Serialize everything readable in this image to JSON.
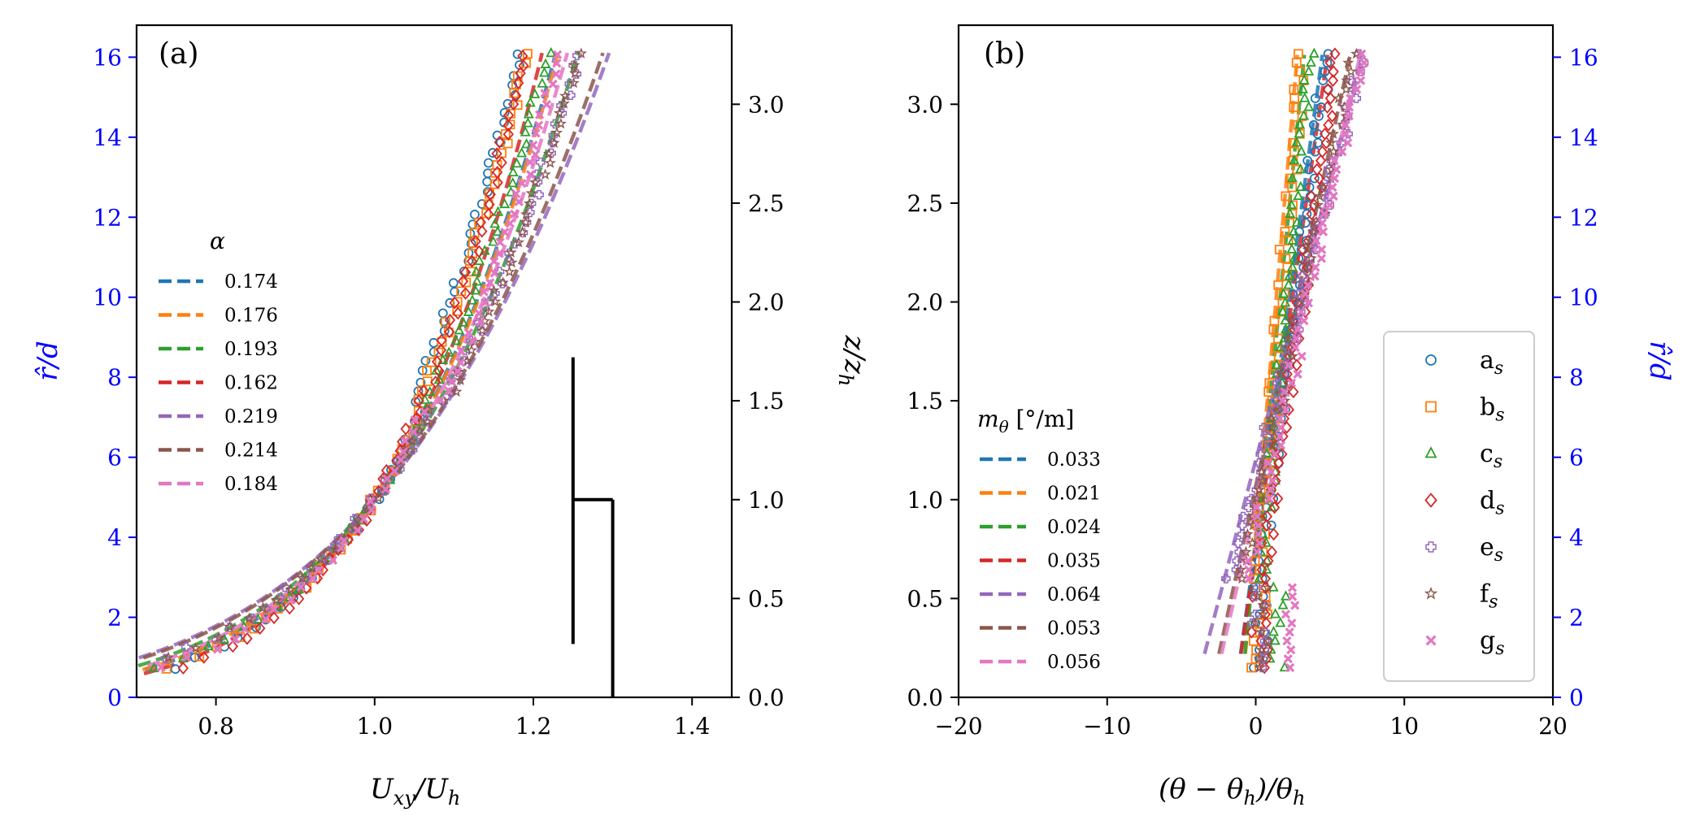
{
  "colors": {
    "a": "#1f77b4",
    "b": "#ff7f0e",
    "c": "#2ca02c",
    "d": "#d62728",
    "e": "#9467bd",
    "f": "#8c564b",
    "g": "#e377c2",
    "secondary_axis": "#0000ff",
    "axis": "#000000"
  },
  "chart_data": [
    {
      "panel": "(a)",
      "type": "line",
      "xlabel": "U_xy/U_h",
      "ylabel_left": "r̂/d",
      "ylabel_right": "z/z_h",
      "xlim": [
        0.7,
        1.45
      ],
      "ylim_left": [
        0,
        16.8
      ],
      "ylim_right": [
        0,
        3.4
      ],
      "xticks": [
        "0.8",
        "1.0",
        "1.2",
        "1.4"
      ],
      "xtick_values": [
        0.8,
        1.0,
        1.2,
        1.4
      ],
      "yticks_left": [
        "0",
        "2",
        "4",
        "6",
        "8",
        "10",
        "12",
        "14",
        "16"
      ],
      "yticks_right": [
        "0.0",
        "0.5",
        "1.0",
        "1.5",
        "2.0",
        "2.5",
        "3.0"
      ],
      "legend_title": "α",
      "legend_location": "center-left",
      "series": [
        {
          "name": "0.174",
          "key": "a",
          "alpha": 0.174,
          "marker": "circle"
        },
        {
          "name": "0.176",
          "key": "b",
          "alpha": 0.176,
          "marker": "square"
        },
        {
          "name": "0.193",
          "key": "c",
          "alpha": 0.193,
          "marker": "triangle"
        },
        {
          "name": "0.162",
          "key": "d",
          "alpha": 0.162,
          "marker": "diamond"
        },
        {
          "name": "0.219",
          "key": "e",
          "alpha": 0.219,
          "marker": "plus"
        },
        {
          "name": "0.214",
          "key": "f",
          "alpha": 0.214,
          "marker": "star"
        },
        {
          "name": "0.184",
          "key": "g",
          "alpha": 0.184,
          "marker": "x"
        }
      ],
      "turbine_glyph": {
        "hub_x": 1.25,
        "hub_y": 1.0,
        "blade_bottom": 0.27,
        "blade_top": 1.72,
        "tower_x": 1.3,
        "tower_bottom": 0.0
      }
    },
    {
      "panel": "(b)",
      "type": "line",
      "xlabel": "(θ − θ_h)/θ_h",
      "ylabel_left": "z/z_h",
      "ylabel_right": "r̂/d",
      "xlim": [
        -20,
        20
      ],
      "ylim_left": [
        0,
        3.4
      ],
      "ylim_right": [
        0,
        16.8
      ],
      "xticks": [
        "−20",
        "−10",
        "0",
        "10",
        "20"
      ],
      "xtick_values": [
        -20,
        -10,
        0,
        10,
        20
      ],
      "yticks_left": [
        "0.0",
        "0.5",
        "1.0",
        "1.5",
        "2.0",
        "2.5",
        "3.0"
      ],
      "yticks_right": [
        "0",
        "2",
        "4",
        "6",
        "8",
        "10",
        "12",
        "14",
        "16"
      ],
      "legend_title": "m_θ [°/m]",
      "legend_location": "lower-left",
      "symbol_legend_location": "lower-right",
      "series": [
        {
          "name": "0.033",
          "key": "a",
          "slope": 0.033,
          "symbol": "a",
          "marker": "circle"
        },
        {
          "name": "0.021",
          "key": "b",
          "slope": 0.021,
          "symbol": "b",
          "marker": "square"
        },
        {
          "name": "0.024",
          "key": "c",
          "slope": 0.024,
          "symbol": "c",
          "marker": "triangle"
        },
        {
          "name": "0.035",
          "key": "d",
          "slope": 0.035,
          "symbol": "d",
          "marker": "diamond"
        },
        {
          "name": "0.064",
          "key": "e",
          "slope": 0.064,
          "symbol": "e",
          "marker": "plus"
        },
        {
          "name": "0.053",
          "key": "f",
          "slope": 0.053,
          "symbol": "f",
          "marker": "star"
        },
        {
          "name": "0.056",
          "key": "g",
          "slope": 0.056,
          "symbol": "g",
          "marker": "x"
        }
      ],
      "symbol_subscript": "s"
    }
  ]
}
